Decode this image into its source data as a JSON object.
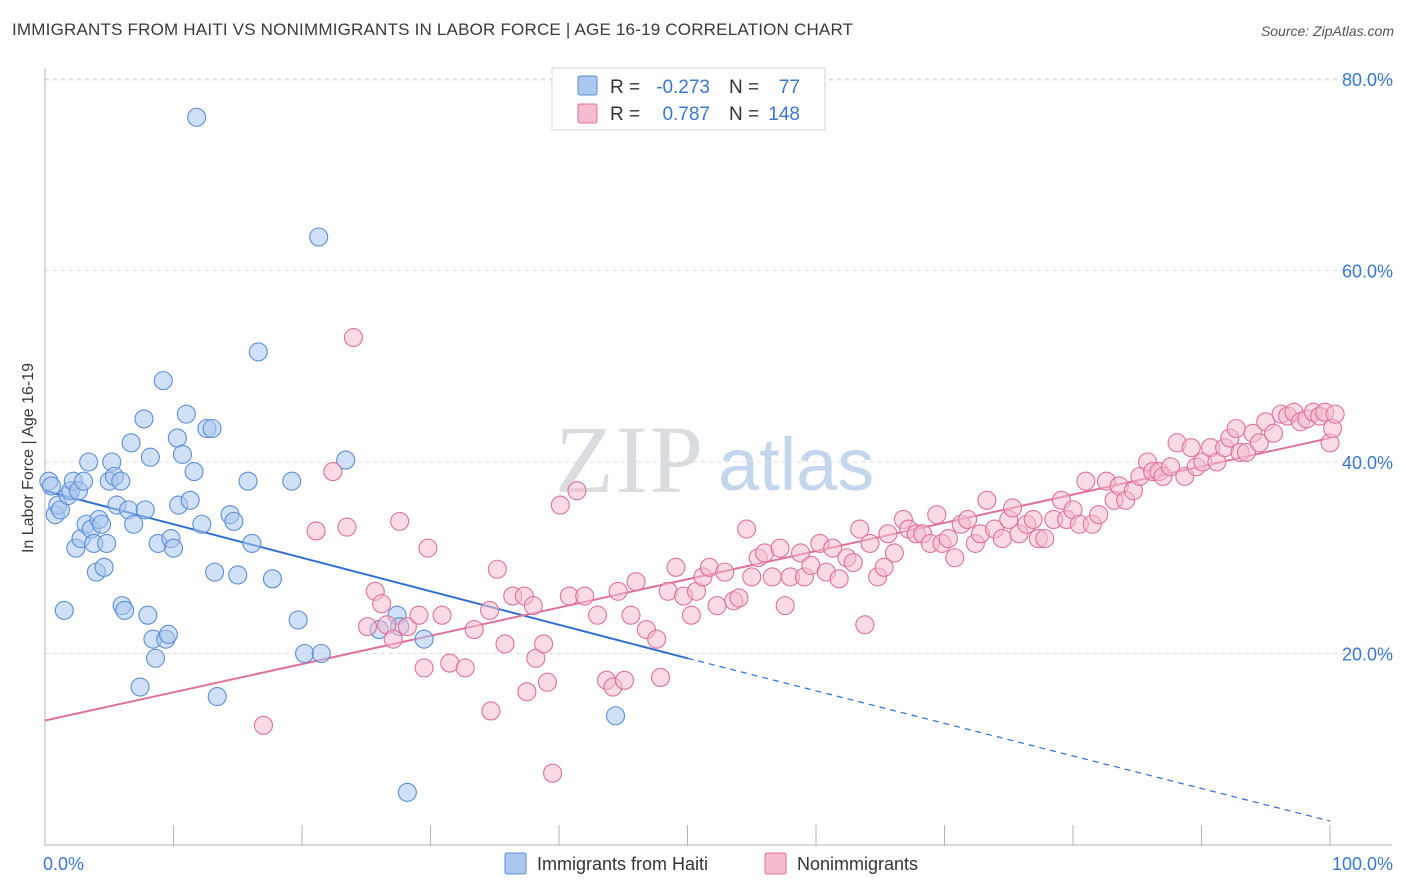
{
  "title": "IMMIGRANTS FROM HAITI VS NONIMMIGRANTS IN LABOR FORCE | AGE 16-19 CORRELATION CHART",
  "source": "Source: ZipAtlas.com",
  "watermark": {
    "zip": "ZIP",
    "atlas": "atlas"
  },
  "colors": {
    "blue": "#5b8fd6",
    "blue_fill": "#aac7ef",
    "pink": "#e0719a",
    "pink_fill": "#f4bcd0",
    "axis_label": "#3a78d0"
  },
  "legend_top": [
    {
      "r_label": "R =",
      "r_value": "-0.273",
      "n_label": "N =",
      "n_value": "77",
      "color": "blue"
    },
    {
      "r_label": "R =",
      "r_value": "0.787",
      "n_label": "N =",
      "n_value": "148",
      "color": "pink"
    }
  ],
  "chart_data": {
    "type": "scatter",
    "title": "IMMIGRANTS FROM HAITI VS NONIMMIGRANTS IN LABOR FORCE | AGE 16-19 CORRELATION CHART",
    "xlabel": "",
    "ylabel": "In Labor Force | Age 16-19",
    "xlim": [
      0,
      100
    ],
    "ylim": [
      0,
      83
    ],
    "x_tick_labels": [
      "0.0%",
      "100.0%"
    ],
    "y_ticks": [
      20,
      40,
      60,
      80
    ],
    "y_tick_labels": [
      "20.0%",
      "40.0%",
      "60.0%",
      "80.0%"
    ],
    "grid": true,
    "legend_position": "bottom",
    "series": [
      {
        "name": "Immigrants from Haiti",
        "color": "blue",
        "points": [
          [
            0.3,
            38
          ],
          [
            0.5,
            37.5
          ],
          [
            0.8,
            34.5
          ],
          [
            1.0,
            35.5
          ],
          [
            1.2,
            35
          ],
          [
            1.5,
            24.5
          ],
          [
            1.8,
            36.5
          ],
          [
            2.0,
            37
          ],
          [
            2.2,
            38
          ],
          [
            2.4,
            31
          ],
          [
            2.6,
            37
          ],
          [
            2.8,
            32
          ],
          [
            3.0,
            38
          ],
          [
            3.2,
            33.5
          ],
          [
            3.4,
            40
          ],
          [
            3.6,
            33
          ],
          [
            3.8,
            31.5
          ],
          [
            4.0,
            28.5
          ],
          [
            4.2,
            34
          ],
          [
            4.4,
            33.5
          ],
          [
            4.6,
            29
          ],
          [
            4.8,
            31.5
          ],
          [
            5.0,
            38
          ],
          [
            5.2,
            40
          ],
          [
            5.4,
            38.5
          ],
          [
            5.6,
            35.5
          ],
          [
            5.9,
            38
          ],
          [
            6.0,
            25
          ],
          [
            6.2,
            24.5
          ],
          [
            6.5,
            35
          ],
          [
            6.7,
            42
          ],
          [
            6.9,
            33.5
          ],
          [
            7.4,
            16.5
          ],
          [
            7.7,
            44.5
          ],
          [
            7.8,
            35
          ],
          [
            8.0,
            24
          ],
          [
            8.2,
            40.5
          ],
          [
            8.4,
            21.5
          ],
          [
            8.6,
            19.5
          ],
          [
            8.8,
            31.5
          ],
          [
            9.2,
            48.5
          ],
          [
            9.4,
            21.5
          ],
          [
            9.6,
            22
          ],
          [
            9.8,
            32
          ],
          [
            10.0,
            31
          ],
          [
            10.3,
            42.5
          ],
          [
            10.4,
            35.5
          ],
          [
            10.7,
            40.8
          ],
          [
            11.0,
            45
          ],
          [
            11.3,
            36
          ],
          [
            11.6,
            39
          ],
          [
            11.8,
            76
          ],
          [
            12.2,
            33.5
          ],
          [
            12.6,
            43.5
          ],
          [
            13.0,
            43.5
          ],
          [
            13.2,
            28.5
          ],
          [
            13.4,
            15.5
          ],
          [
            14.4,
            34.5
          ],
          [
            14.7,
            33.8
          ],
          [
            15.0,
            28.2
          ],
          [
            15.8,
            38
          ],
          [
            16.1,
            31.5
          ],
          [
            16.6,
            51.5
          ],
          [
            17.7,
            27.8
          ],
          [
            19.2,
            38
          ],
          [
            19.7,
            23.5
          ],
          [
            20.2,
            20
          ],
          [
            21.3,
            63.5
          ],
          [
            21.5,
            20
          ],
          [
            23.4,
            40.2
          ],
          [
            26.0,
            22.5
          ],
          [
            27.4,
            24
          ],
          [
            27.6,
            22.8
          ],
          [
            28.2,
            5.5
          ],
          [
            29.5,
            21.5
          ],
          [
            44.4,
            13.5
          ]
        ],
        "trend_solid": [
          [
            0,
            37
          ],
          [
            50,
            19.5
          ]
        ],
        "trend_dashed": [
          [
            50,
            19.5
          ],
          [
            100,
            2.5
          ]
        ]
      },
      {
        "name": "Nonimmigrants",
        "color": "pink",
        "points": [
          [
            17.0,
            12.5
          ],
          [
            21.1,
            32.8
          ],
          [
            22.4,
            39
          ],
          [
            23.5,
            33.2
          ],
          [
            24.0,
            53
          ],
          [
            25.1,
            22.8
          ],
          [
            25.7,
            26.5
          ],
          [
            26.2,
            25.2
          ],
          [
            26.6,
            23
          ],
          [
            27.1,
            21.5
          ],
          [
            27.6,
            33.8
          ],
          [
            28.2,
            22.8
          ],
          [
            29.1,
            24
          ],
          [
            29.5,
            18.5
          ],
          [
            29.8,
            31
          ],
          [
            30.9,
            24
          ],
          [
            31.5,
            19
          ],
          [
            32.7,
            18.5
          ],
          [
            33.4,
            22.5
          ],
          [
            34.6,
            24.5
          ],
          [
            34.7,
            14
          ],
          [
            35.2,
            28.8
          ],
          [
            35.8,
            21
          ],
          [
            36.4,
            26
          ],
          [
            37.3,
            26
          ],
          [
            37.5,
            16
          ],
          [
            38.0,
            25
          ],
          [
            38.2,
            19.5
          ],
          [
            38.8,
            21
          ],
          [
            39.1,
            17
          ],
          [
            39.5,
            7.5
          ],
          [
            40.1,
            35.5
          ],
          [
            40.8,
            26
          ],
          [
            41.4,
            37
          ],
          [
            42.0,
            26
          ],
          [
            43.0,
            24
          ],
          [
            43.7,
            17.2
          ],
          [
            44.2,
            16.5
          ],
          [
            44.6,
            26.5
          ],
          [
            45.1,
            17.2
          ],
          [
            45.6,
            24
          ],
          [
            46.0,
            27.5
          ],
          [
            46.8,
            22.5
          ],
          [
            47.6,
            21.5
          ],
          [
            47.9,
            17.5
          ],
          [
            48.5,
            26.5
          ],
          [
            49.1,
            29
          ],
          [
            49.7,
            26
          ],
          [
            50.3,
            24
          ],
          [
            50.7,
            26.5
          ],
          [
            51.2,
            28
          ],
          [
            51.7,
            29
          ],
          [
            52.3,
            25
          ],
          [
            52.9,
            28.5
          ],
          [
            53.6,
            25.5
          ],
          [
            54.0,
            25.8
          ],
          [
            54.6,
            33
          ],
          [
            55.0,
            28
          ],
          [
            55.5,
            30
          ],
          [
            56.0,
            30.5
          ],
          [
            56.6,
            28
          ],
          [
            57.2,
            31
          ],
          [
            57.6,
            25
          ],
          [
            58.0,
            28
          ],
          [
            58.8,
            30.5
          ],
          [
            59.1,
            28
          ],
          [
            59.6,
            29.2
          ],
          [
            60.3,
            31.5
          ],
          [
            60.8,
            28.5
          ],
          [
            61.3,
            31
          ],
          [
            61.8,
            27.8
          ],
          [
            62.4,
            30
          ],
          [
            62.9,
            29.5
          ],
          [
            63.4,
            33
          ],
          [
            63.8,
            23
          ],
          [
            64.2,
            31.5
          ],
          [
            64.8,
            28
          ],
          [
            65.3,
            29
          ],
          [
            65.6,
            32.5
          ],
          [
            66.1,
            30.5
          ],
          [
            66.8,
            34
          ],
          [
            67.2,
            33
          ],
          [
            67.8,
            32.5
          ],
          [
            68.3,
            32.5
          ],
          [
            68.9,
            31.5
          ],
          [
            69.4,
            34.5
          ],
          [
            69.8,
            31.5
          ],
          [
            70.3,
            32
          ],
          [
            70.8,
            30
          ],
          [
            71.3,
            33.5
          ],
          [
            71.8,
            34
          ],
          [
            72.4,
            31.5
          ],
          [
            72.8,
            32.5
          ],
          [
            73.3,
            36
          ],
          [
            73.9,
            33
          ],
          [
            74.5,
            32
          ],
          [
            75.0,
            34
          ],
          [
            75.3,
            35.2
          ],
          [
            75.8,
            32.5
          ],
          [
            76.4,
            33.5
          ],
          [
            76.9,
            34
          ],
          [
            77.3,
            32
          ],
          [
            77.8,
            32
          ],
          [
            78.5,
            34
          ],
          [
            79.1,
            36
          ],
          [
            79.5,
            34
          ],
          [
            80.0,
            35
          ],
          [
            80.5,
            33.5
          ],
          [
            81.0,
            38
          ],
          [
            81.5,
            33.5
          ],
          [
            82.0,
            34.5
          ],
          [
            82.6,
            38
          ],
          [
            83.2,
            36
          ],
          [
            83.6,
            37.5
          ],
          [
            84.1,
            36
          ],
          [
            84.7,
            37
          ],
          [
            85.2,
            38.5
          ],
          [
            85.8,
            40
          ],
          [
            86.2,
            39
          ],
          [
            86.7,
            39
          ],
          [
            87.0,
            38.5
          ],
          [
            87.6,
            39.5
          ],
          [
            88.1,
            42
          ],
          [
            88.7,
            38.5
          ],
          [
            89.2,
            41.5
          ],
          [
            89.6,
            39.5
          ],
          [
            90.1,
            40
          ],
          [
            90.7,
            41.5
          ],
          [
            91.2,
            40
          ],
          [
            91.8,
            41.5
          ],
          [
            92.2,
            42.5
          ],
          [
            92.7,
            43.5
          ],
          [
            93.0,
            41
          ],
          [
            93.5,
            41
          ],
          [
            94.0,
            43
          ],
          [
            94.5,
            42
          ],
          [
            95.0,
            44.2
          ],
          [
            95.6,
            43
          ],
          [
            96.2,
            45
          ],
          [
            96.7,
            44.8
          ],
          [
            97.2,
            45.2
          ],
          [
            97.7,
            44.2
          ],
          [
            98.2,
            44.5
          ],
          [
            98.7,
            45.2
          ],
          [
            99.2,
            44.8
          ],
          [
            99.6,
            45.2
          ],
          [
            100.0,
            42
          ],
          [
            100.2,
            43.5
          ],
          [
            100.4,
            45
          ]
        ],
        "trend_solid": [
          [
            0,
            13
          ],
          [
            100,
            42.5
          ]
        ]
      }
    ]
  }
}
